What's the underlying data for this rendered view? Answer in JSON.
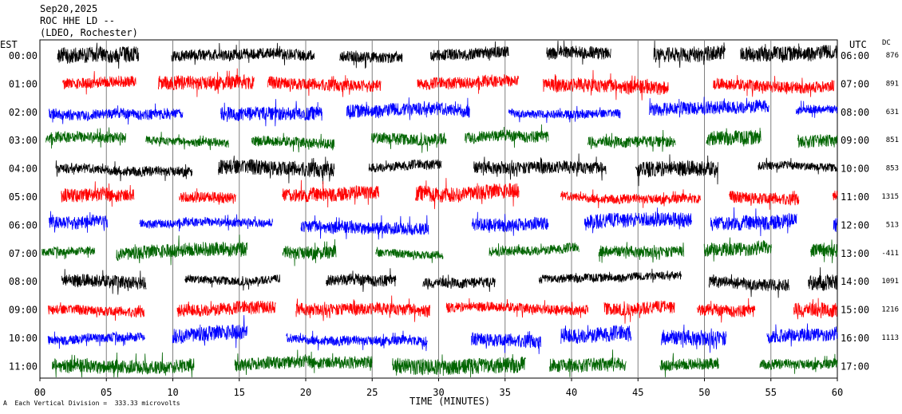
{
  "header": {
    "date": "Sep20,2025",
    "station": "ROC HHE LD --",
    "network": "(LDEO, Rochester)"
  },
  "footer": {
    "scale_note": "Each Vertical Division =  333.33 microvolts",
    "corner_mark": "A"
  },
  "chart_data": {
    "type": "line",
    "title": "",
    "xlabel": "TIME (MINUTES)",
    "ylabel_left": "EST",
    "ylabel_right": "UTC",
    "dc_header": "DC",
    "xlim": [
      0,
      60
    ],
    "x_ticks": [
      "00",
      "05",
      "10",
      "15",
      "20",
      "25",
      "30",
      "35",
      "40",
      "45",
      "50",
      "55",
      "60"
    ],
    "grid": "vertical every 5 minutes",
    "colors": [
      "#000000",
      "#ff0000",
      "#0000ff",
      "#006400"
    ],
    "rows": [
      {
        "est": "00:00",
        "utc": "06:00",
        "dc": "876"
      },
      {
        "est": "01:00",
        "utc": "07:00",
        "dc": "891"
      },
      {
        "est": "02:00",
        "utc": "08:00",
        "dc": "631"
      },
      {
        "est": "03:00",
        "utc": "09:00",
        "dc": "851"
      },
      {
        "est": "04:00",
        "utc": "10:00",
        "dc": "853"
      },
      {
        "est": "05:00",
        "utc": "11:00",
        "dc": "1315"
      },
      {
        "est": "06:00",
        "utc": "12:00",
        "dc": "513"
      },
      {
        "est": "07:00",
        "utc": "13:00",
        "dc": "-411"
      },
      {
        "est": "08:00",
        "utc": "14:00",
        "dc": "1091"
      },
      {
        "est": "09:00",
        "utc": "15:00",
        "dc": "1216"
      },
      {
        "est": "10:00",
        "utc": "16:00",
        "dc": "1113"
      },
      {
        "est": "11:00",
        "utc": "17:00",
        "dc": ""
      }
    ]
  }
}
